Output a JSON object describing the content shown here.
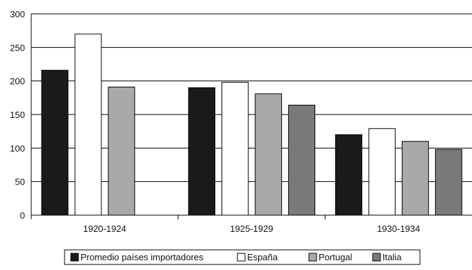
{
  "chart_data": {
    "type": "bar",
    "title": "",
    "xlabel": "",
    "ylabel": "",
    "categories": [
      "1920-1924",
      "1925-1929",
      "1930-1934"
    ],
    "series": [
      {
        "name": "Promedio países importadores",
        "color": "#1a1a1a",
        "values": [
          216,
          190,
          120
        ]
      },
      {
        "name": "España",
        "color": "#ffffff",
        "values": [
          270,
          198,
          129
        ]
      },
      {
        "name": "Portugal",
        "color": "#a9a9a9",
        "values": [
          191,
          181,
          110
        ]
      },
      {
        "name": "Italia",
        "color": "#7a7a7a",
        "values": [
          null,
          164,
          98
        ]
      }
    ],
    "ylim": [
      0,
      300
    ],
    "yticks": [
      0,
      50,
      100,
      150,
      200,
      250,
      300
    ],
    "grid": true,
    "legend_position": "bottom"
  }
}
